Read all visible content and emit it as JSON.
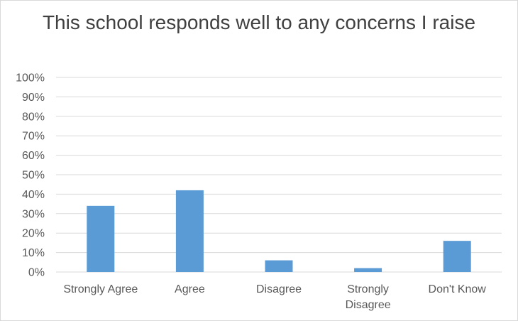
{
  "chart_data": {
    "type": "bar",
    "title": "This school responds well to any concerns I raise",
    "categories": [
      "Strongly Agree",
      "Agree",
      "Disagree",
      "Strongly Disagree",
      "Don't Know"
    ],
    "category_lines": [
      [
        "Strongly Agree"
      ],
      [
        "Agree"
      ],
      [
        "Disagree"
      ],
      [
        "Strongly",
        "Disagree"
      ],
      [
        "Don't Know"
      ]
    ],
    "values": [
      34,
      42,
      6,
      2,
      16
    ],
    "ylim": [
      0,
      100
    ],
    "yticks": [
      "0%",
      "10%",
      "20%",
      "30%",
      "40%",
      "50%",
      "60%",
      "70%",
      "80%",
      "90%",
      "100%"
    ],
    "bar_color": "#5b9bd5",
    "grid_color": "#d9d9d9",
    "grid": true,
    "xlabel": "",
    "ylabel": ""
  }
}
